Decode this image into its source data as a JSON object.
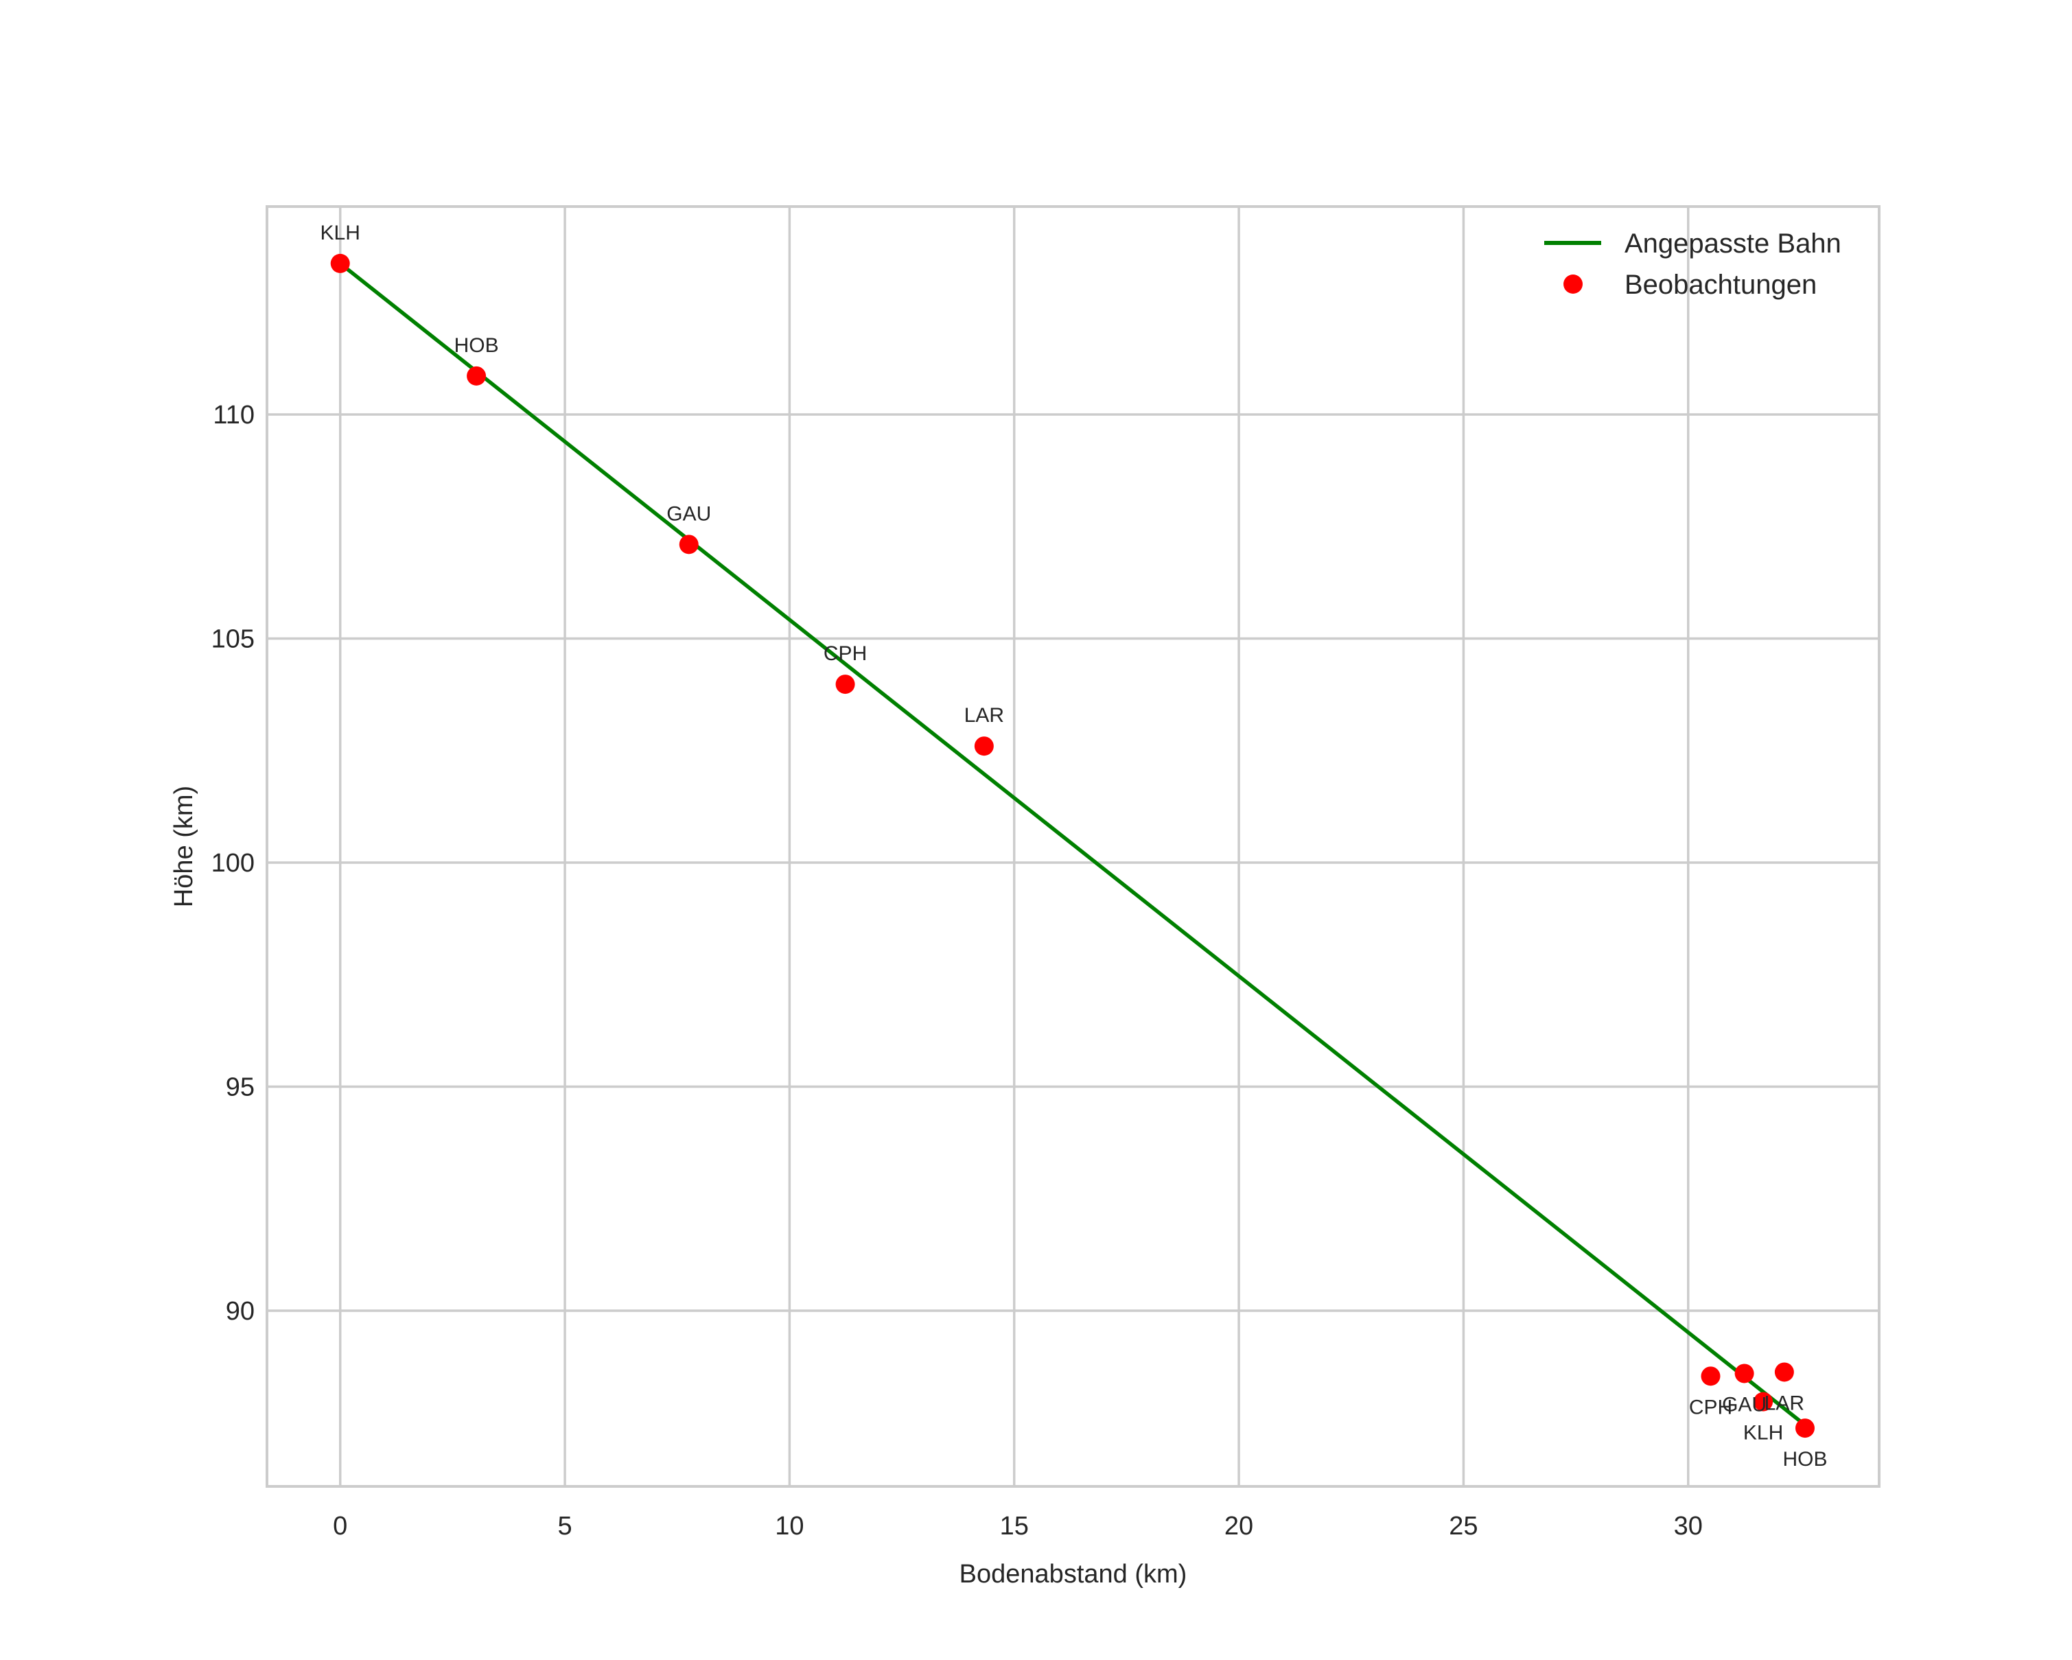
{
  "chart_data": {
    "type": "line",
    "title": "",
    "xlabel": "Bodenabstand (km)",
    "ylabel": "Höhe (km)",
    "xlim": [
      -1.63,
      34.25
    ],
    "ylim": [
      86.08,
      114.64
    ],
    "xticks": [
      0,
      5,
      10,
      15,
      20,
      25,
      30
    ],
    "yticks": [
      90,
      95,
      100,
      105,
      110
    ],
    "grid": true,
    "legend_position": "upper right",
    "series": [
      {
        "name": "Angepasste Bahn",
        "kind": "line",
        "color": "#008000",
        "x": [
          0.0,
          32.6
        ],
        "y": [
          113.37,
          87.45
        ]
      },
      {
        "name": "Beobachtungen",
        "kind": "scatter",
        "color": "#ff0000",
        "points": [
          {
            "label": "KLH",
            "x": 0.0,
            "y": 113.37,
            "label_pos": "above"
          },
          {
            "label": "HOB",
            "x": 3.03,
            "y": 110.86,
            "label_pos": "above"
          },
          {
            "label": "GAU",
            "x": 7.76,
            "y": 107.1,
            "label_pos": "above"
          },
          {
            "label": "CPH",
            "x": 11.24,
            "y": 103.98,
            "label_pos": "above"
          },
          {
            "label": "LAR",
            "x": 14.33,
            "y": 102.6,
            "label_pos": "above"
          },
          {
            "label": "CPH",
            "x": 30.5,
            "y": 88.54,
            "label_pos": "below"
          },
          {
            "label": "GAU",
            "x": 31.25,
            "y": 88.6,
            "label_pos": "below"
          },
          {
            "label": "LAR",
            "x": 32.14,
            "y": 88.63,
            "label_pos": "below"
          },
          {
            "label": "KLH",
            "x": 31.67,
            "y": 87.97,
            "label_pos": "below"
          },
          {
            "label": "HOB",
            "x": 32.6,
            "y": 87.38,
            "label_pos": "below"
          }
        ]
      }
    ]
  },
  "legend": {
    "items": [
      {
        "label": "Angepasste Bahn",
        "marker": "line",
        "color": "#008000"
      },
      {
        "label": "Beobachtungen",
        "marker": "dot",
        "color": "#ff0000"
      }
    ]
  },
  "colors": {
    "grid": "#cccccc",
    "frame": "#cccccc",
    "text": "#262626",
    "line": "#008000",
    "points": "#ff0000"
  }
}
